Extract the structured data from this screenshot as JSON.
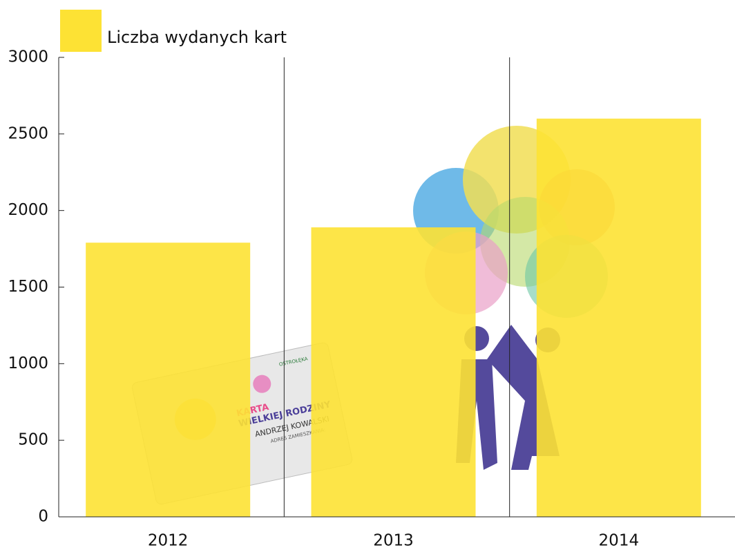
{
  "chart_data": {
    "type": "bar",
    "categories": [
      "2012",
      "2013",
      "2014"
    ],
    "series": [
      {
        "name": "Liczba wydanych kart",
        "color": "#fde234",
        "values": [
          1790,
          1890,
          2600
        ]
      }
    ],
    "ylim": [
      0,
      3000
    ],
    "yticks": [
      0,
      500,
      1000,
      1500,
      2000,
      2500,
      3000
    ],
    "legend": "top-left"
  },
  "illustration": {
    "card_brand": "OSTROŁĘKA",
    "card_title_1": "KARTA",
    "card_title_2": "WIELKIEJ RODZINY",
    "card_holder": "ANDRZEJ KOWALSKI",
    "card_address": "ADRES ZAMIESZKANIA:"
  }
}
